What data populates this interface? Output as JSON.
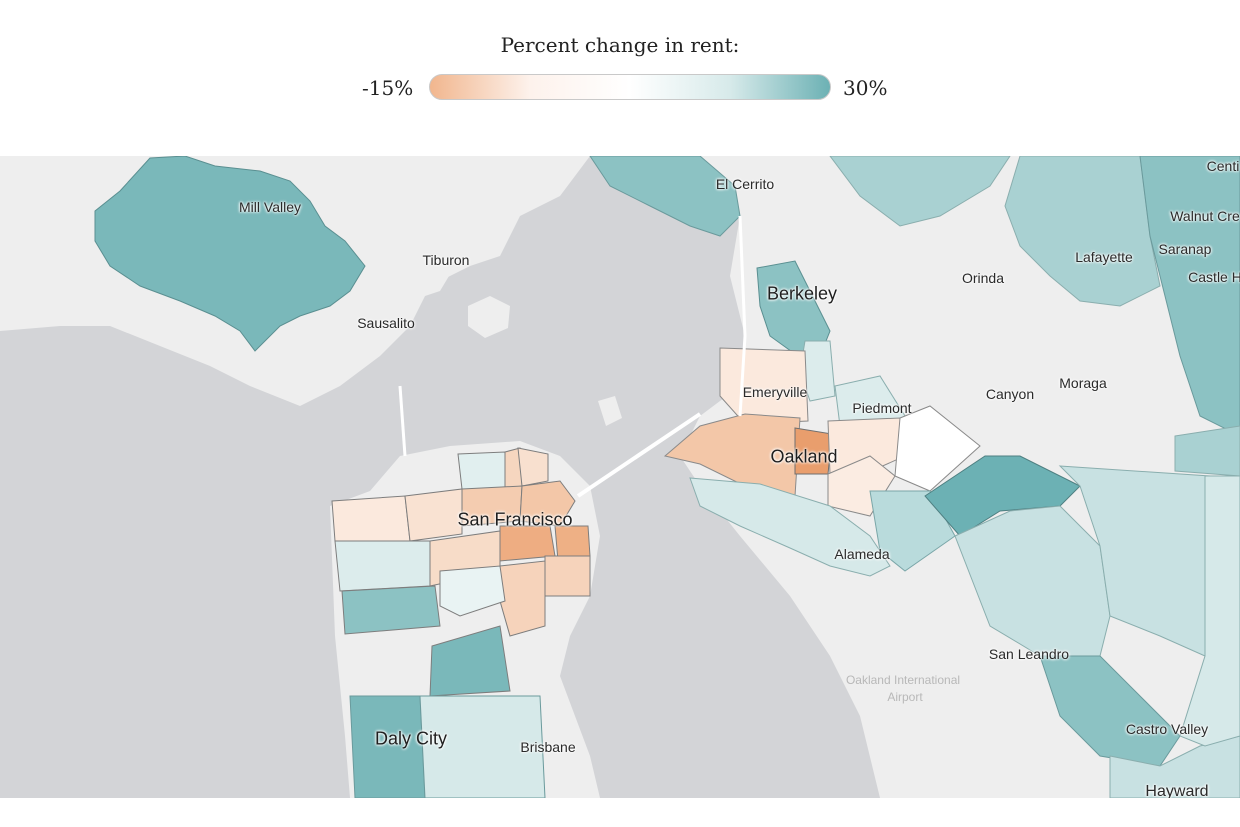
{
  "legend": {
    "title": "Percent change in rent:",
    "min_label": "-15%",
    "max_label": "30%",
    "min_value": -15,
    "max_value": 30,
    "gradient_colors": [
      "#f1b68e",
      "#fdf2ec",
      "#ffffff",
      "#d7eaea",
      "#6cb1b4"
    ]
  },
  "colors": {
    "water": "#d3d4d7",
    "land": "#eeeeee",
    "negative": "#eeaf85",
    "positive": "#6cb1b4"
  },
  "places": {
    "mill_valley": "Mill Valley",
    "tiburon": "Tiburon",
    "sausalito": "Sausalito",
    "el_cerrito": "El Cerrito",
    "berkeley": "Berkeley",
    "emeryville": "Emeryville",
    "piedmont": "Piedmont",
    "oakland": "Oakland",
    "alameda": "Alameda",
    "san_francisco": "San Francisco",
    "daly_city": "Daly City",
    "brisbane": "Brisbane",
    "orinda": "Orinda",
    "lafayette": "Lafayette",
    "saranap": "Saranap",
    "walnut_creek": "Walnut Cre",
    "castle_hill": "Castle H",
    "centerville": "Centi",
    "moraga": "Moraga",
    "canyon": "Canyon",
    "san_leandro": "San Leandro",
    "castro_valley": "Castro Valley",
    "hayward": "Hayward",
    "airport_line1": "Oakland International",
    "airport_line2": "Airport"
  }
}
